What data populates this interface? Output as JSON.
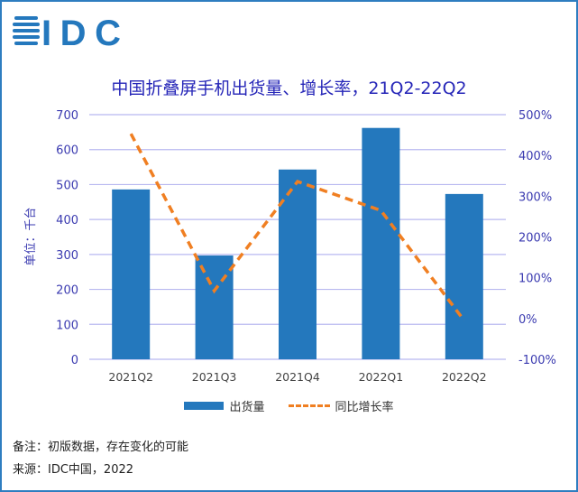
{
  "logo_text": "IDC",
  "chart_data": {
    "type": "bar+line",
    "title": "中国折叠屏手机出货量、增长率，21Q2-22Q2",
    "categories": [
      "2021Q2",
      "2021Q3",
      "2021Q4",
      "2022Q1",
      "2022Q2"
    ],
    "series": [
      {
        "name": "出货量",
        "type": "bar",
        "axis": "left",
        "color": "#2478bd",
        "values": [
          486,
          297,
          543,
          662,
          473
        ]
      },
      {
        "name": "同比增长率",
        "type": "line",
        "style": "dashed",
        "axis": "right",
        "color": "#f07f22",
        "values": [
          453,
          68,
          336,
          265,
          -5
        ]
      }
    ],
    "ylabel": "单位：千台",
    "ylim": [
      0,
      700
    ],
    "yticks": [
      "0",
      "100",
      "200",
      "300",
      "400",
      "500",
      "600",
      "700"
    ],
    "y2lim": [
      -100,
      500
    ],
    "y2ticks": [
      "-100%",
      "0%",
      "100%",
      "200%",
      "300%",
      "400%",
      "500%"
    ],
    "grid": true,
    "legend": "bottom"
  },
  "notes": {
    "remark": "备注：初版数据，存在变化的可能",
    "source": "来源：IDC中国，2022"
  }
}
